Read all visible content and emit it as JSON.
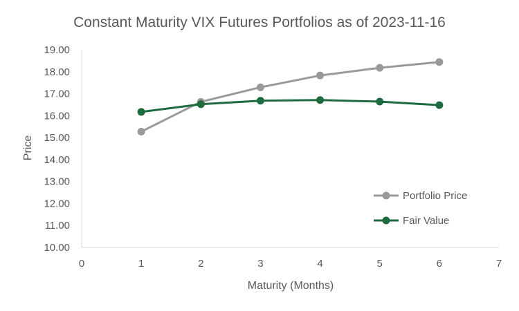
{
  "chart_data": {
    "type": "scatter",
    "title": "Constant Maturity VIX Futures Portfolios as of 2023-11-16",
    "xlabel": "Maturity (Months)",
    "ylabel": "Price",
    "xlim": [
      0,
      7
    ],
    "ylim": [
      10,
      19
    ],
    "x_ticks": [
      "0",
      "1",
      "2",
      "3",
      "4",
      "5",
      "6",
      "7"
    ],
    "y_ticks": [
      "10.00",
      "11.00",
      "12.00",
      "13.00",
      "14.00",
      "15.00",
      "16.00",
      "17.00",
      "18.00",
      "19.00"
    ],
    "grid": false,
    "legend_position": "right",
    "series": [
      {
        "name": "Portfolio Price",
        "color": "#999999",
        "x": [
          1,
          2,
          3,
          4,
          5,
          6
        ],
        "y": [
          15.27,
          16.63,
          17.29,
          17.83,
          18.18,
          18.44
        ]
      },
      {
        "name": "Fair Value",
        "color": "#1e6b40",
        "x": [
          1,
          2,
          3,
          4,
          5,
          6
        ],
        "y": [
          16.17,
          16.52,
          16.68,
          16.71,
          16.64,
          16.48
        ]
      }
    ]
  }
}
